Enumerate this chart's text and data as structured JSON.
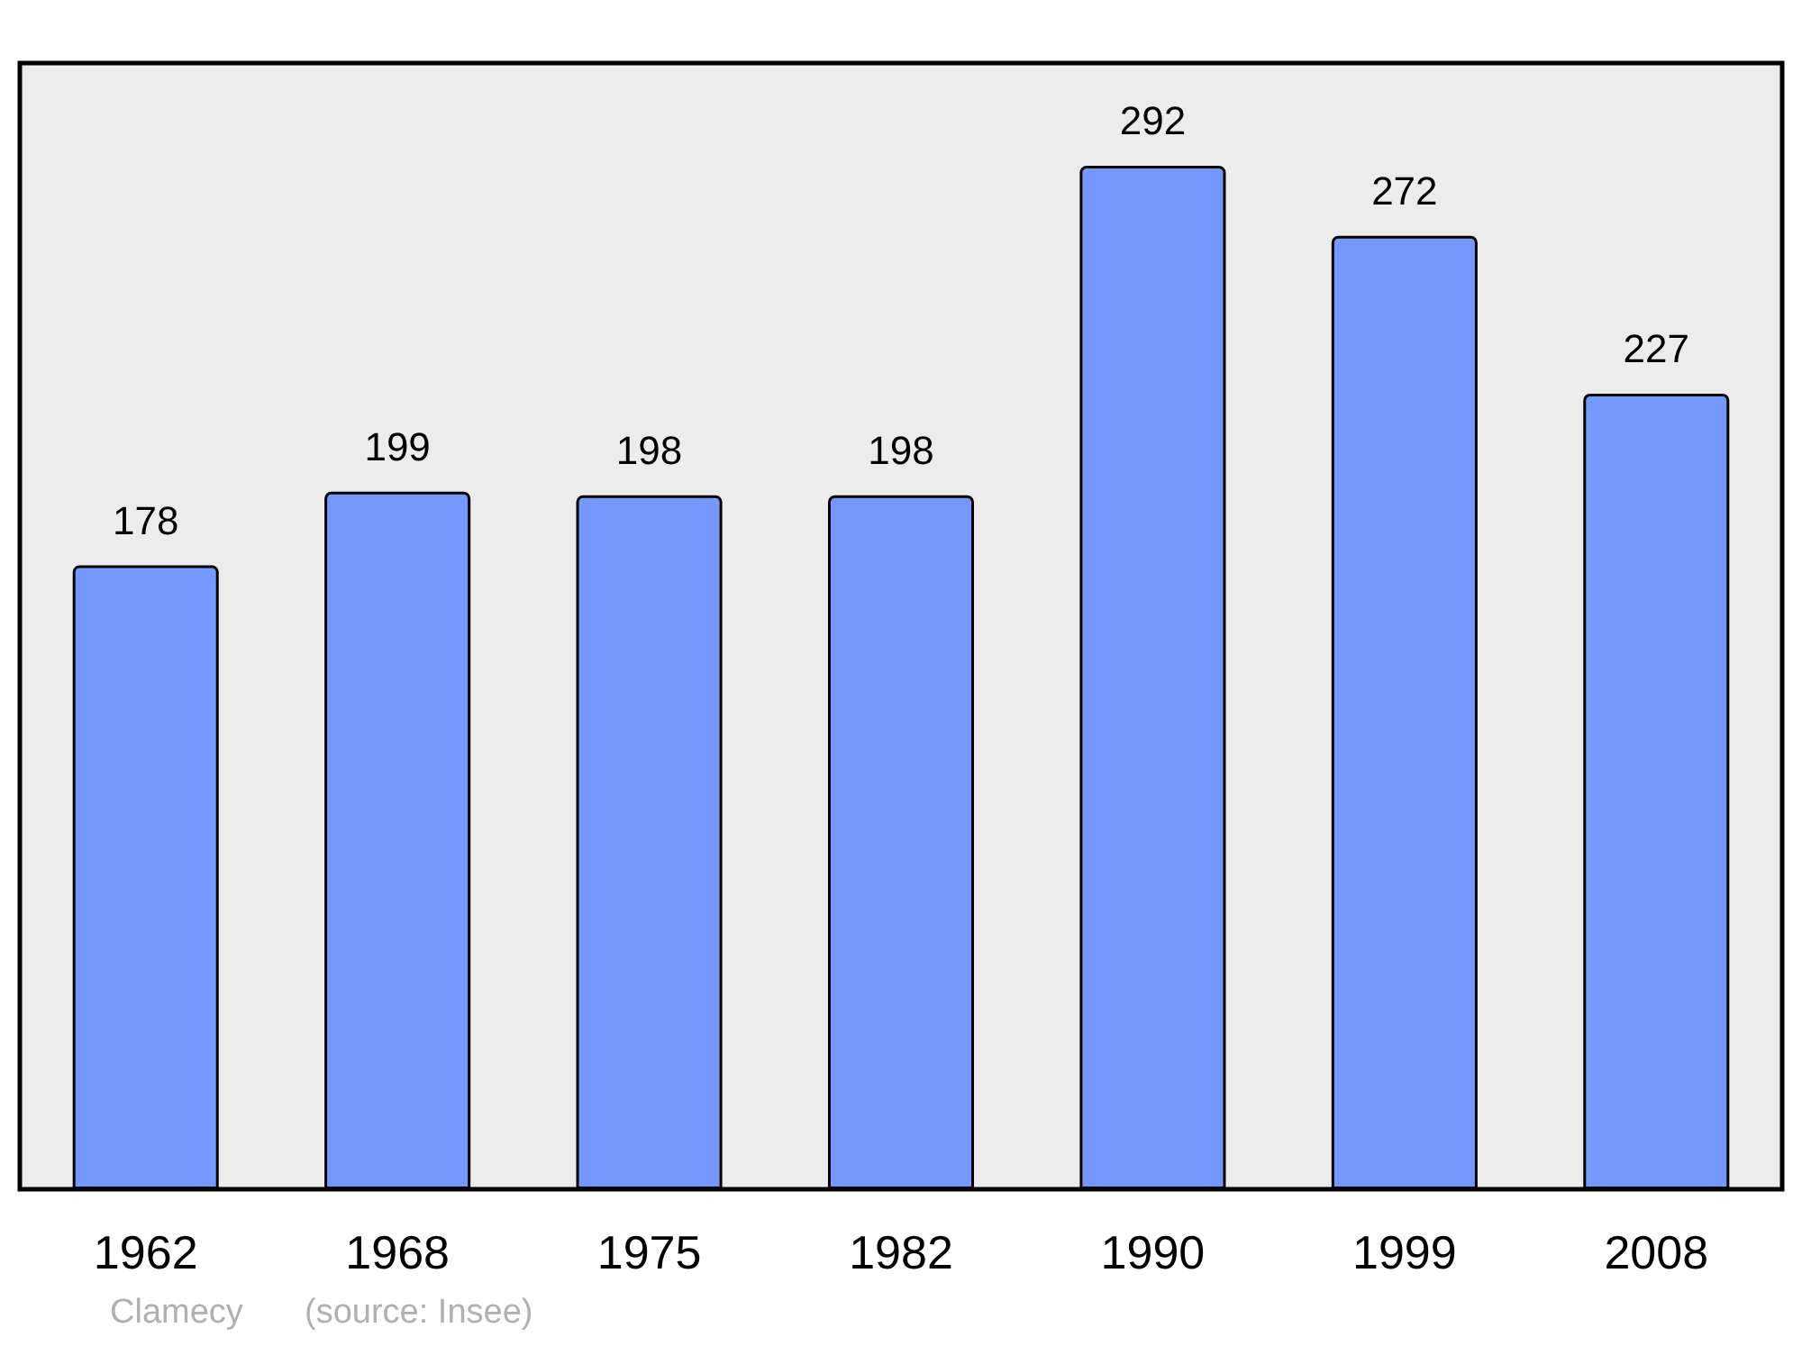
{
  "chart_data": {
    "type": "bar",
    "categories": [
      "1962",
      "1968",
      "1975",
      "1982",
      "1990",
      "1999",
      "2008"
    ],
    "values": [
      178,
      199,
      198,
      198,
      292,
      272,
      227
    ],
    "color": "#7399ff",
    "data_labels": true,
    "annotations": [
      "Clamecy",
      "(source: Insee)"
    ]
  }
}
